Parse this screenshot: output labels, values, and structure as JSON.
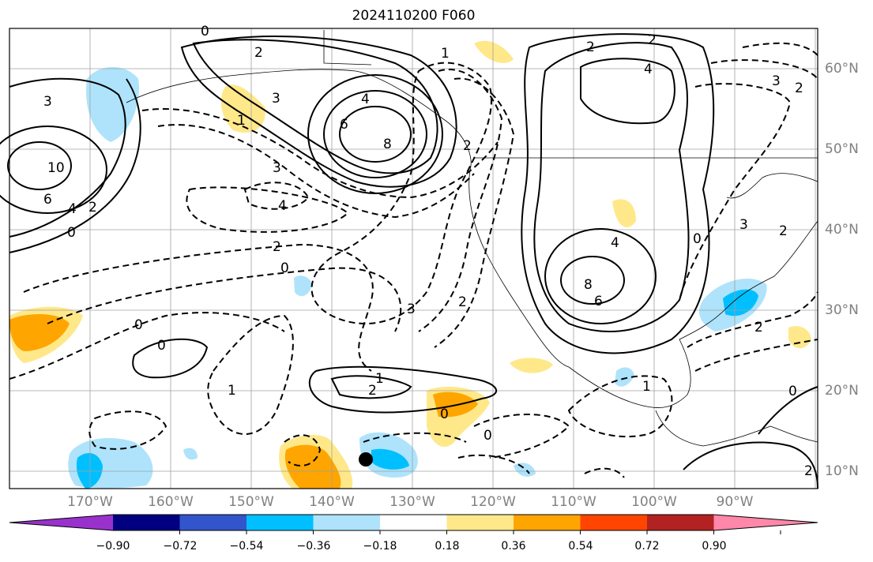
{
  "title": "2024110200 F060",
  "lat_labels": [
    "60°N",
    "50°N",
    "40°N",
    "30°N",
    "20°N",
    "10°N"
  ],
  "lon_labels": [
    "170°W",
    "160°W",
    "150°W",
    "140°W",
    "130°W",
    "120°W",
    "110°W",
    "100°W",
    "90°W"
  ],
  "contour_labels": [
    "0",
    "2",
    "1",
    "2",
    "4",
    "3",
    "1",
    "3",
    "4",
    "8",
    "6",
    "10",
    "6",
    "4",
    "2",
    "0",
    "3",
    "4",
    "2",
    "0",
    "2",
    "3",
    "2",
    "4",
    "8",
    "6",
    "0",
    "0",
    "1",
    "2",
    "0",
    "0",
    "1",
    "2",
    "1",
    "0",
    "3",
    "2",
    "2",
    "0",
    "2",
    "3",
    "2"
  ],
  "colorbar": {
    "tick_labels": [
      "−0.90",
      "−0.72",
      "−0.54",
      "−0.36",
      "−0.18",
      "0.18",
      "0.36",
      "0.54",
      "0.72",
      "0.90"
    ],
    "colors": [
      "#9932cc",
      "#000080",
      "#3355cc",
      "#00bfff",
      "#aee3fb",
      "#ffffff",
      "#ffe88a",
      "#ffa500",
      "#ff4500",
      "#b22222",
      "#ff88aa"
    ]
  }
}
